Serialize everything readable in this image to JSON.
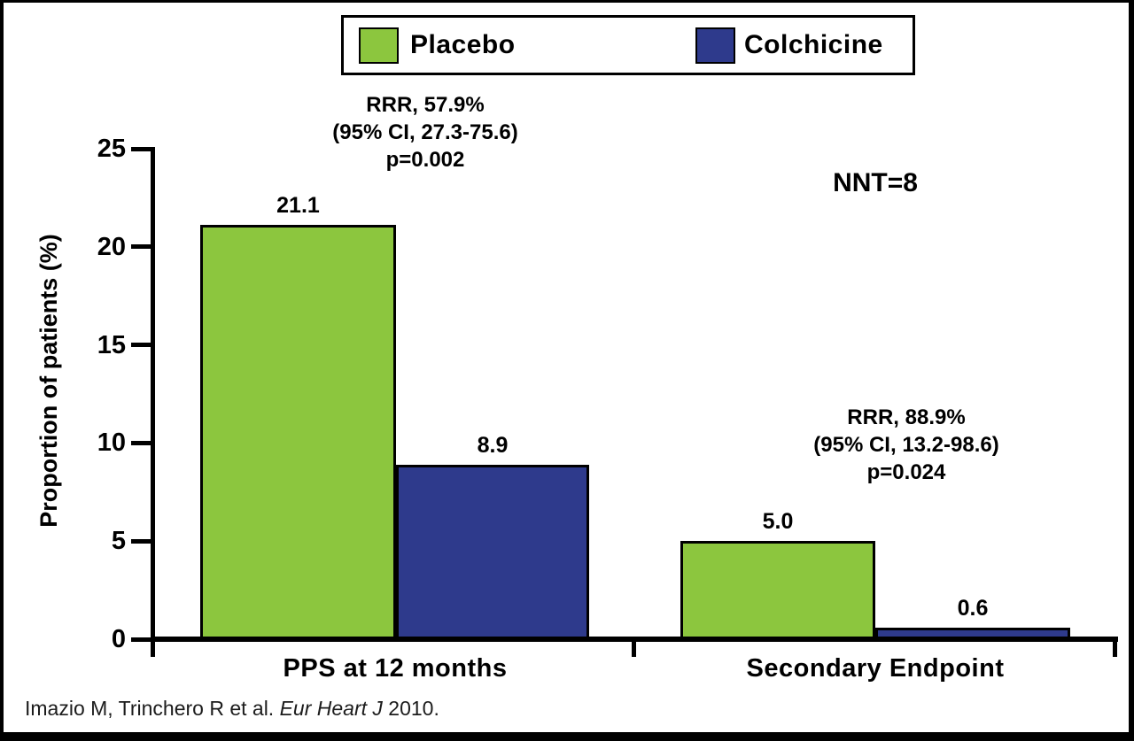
{
  "legend": {
    "items": [
      {
        "label": "Placebo",
        "color": "#8cc63e"
      },
      {
        "label": "Colchicine",
        "color": "#2e3a8c"
      }
    ]
  },
  "y_axis": {
    "title": "Proportion of patients (%)",
    "ticks": [
      0,
      5,
      10,
      15,
      20,
      25
    ]
  },
  "chart_data": {
    "type": "bar",
    "categories": [
      "PPS at 12 months",
      "Secondary Endpoint"
    ],
    "series": [
      {
        "name": "Placebo",
        "color": "#8cc63e",
        "values": [
          21.1,
          5.0
        ]
      },
      {
        "name": "Colchicine",
        "color": "#2e3a8c",
        "values": [
          8.9,
          0.6
        ]
      }
    ],
    "title": "",
    "xlabel": "",
    "ylabel": "Proportion of patients (%)",
    "ylim": [
      0,
      25
    ],
    "grid": false,
    "legend_position": "top",
    "annotations": [
      {
        "id": "rrr-pps",
        "text": "RRR, 57.9%\n(95% CI, 27.3-75.6)\np=0.002"
      },
      {
        "id": "nnt",
        "text": "NNT=8"
      },
      {
        "id": "rrr-secondary",
        "text": "RRR, 88.9%\n(95% CI, 13.2-98.6)\np=0.024"
      }
    ]
  },
  "footer": {
    "citation_prefix": "Imazio M, Trinchero R et al. ",
    "citation_italic": "Eur Heart J",
    "citation_suffix": " 2010."
  }
}
